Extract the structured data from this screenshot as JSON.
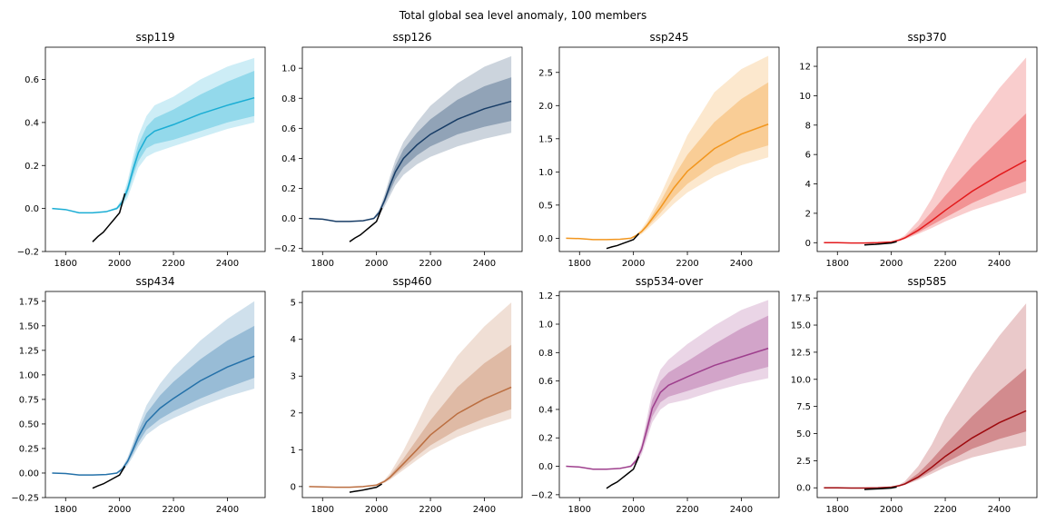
{
  "figure": {
    "title": "Total global sea level anomaly, 100 members"
  },
  "chart_data": [
    {
      "type": "line",
      "title": "ssp119",
      "color": "#1aadd4",
      "xlim": [
        1725,
        2540
      ],
      "ylim": [
        -0.2,
        0.75
      ],
      "xticks": [
        1800,
        2000,
        2200,
        2400
      ],
      "yticks": [
        -0.2,
        0.0,
        0.2,
        0.4,
        0.6
      ],
      "ytick_labels": [
        "−0.2",
        "0.0",
        "0.2",
        "0.4",
        "0.6"
      ],
      "x": [
        1750,
        1800,
        1850,
        1900,
        1950,
        1990,
        2010,
        2030,
        2050,
        2070,
        2100,
        2130,
        2200,
        2300,
        2400,
        2500
      ],
      "median": [
        0.0,
        -0.005,
        -0.02,
        -0.02,
        -0.015,
        0.0,
        0.03,
        0.09,
        0.18,
        0.26,
        0.33,
        0.36,
        0.39,
        0.44,
        0.48,
        0.515
      ],
      "inner_low": [
        0.0,
        -0.005,
        -0.02,
        -0.02,
        -0.015,
        -0.002,
        0.02,
        0.07,
        0.15,
        0.22,
        0.28,
        0.3,
        0.32,
        0.36,
        0.4,
        0.43
      ],
      "inner_high": [
        0.0,
        -0.005,
        -0.02,
        -0.02,
        -0.015,
        0.004,
        0.04,
        0.11,
        0.21,
        0.3,
        0.38,
        0.42,
        0.46,
        0.53,
        0.59,
        0.64
      ],
      "outer_low": [
        0.0,
        -0.005,
        -0.02,
        -0.02,
        -0.015,
        -0.005,
        0.01,
        0.05,
        0.12,
        0.19,
        0.24,
        0.26,
        0.29,
        0.33,
        0.37,
        0.4
      ],
      "outer_high": [
        0.0,
        -0.005,
        -0.02,
        -0.02,
        -0.015,
        0.008,
        0.05,
        0.13,
        0.24,
        0.34,
        0.43,
        0.48,
        0.52,
        0.6,
        0.66,
        0.7
      ],
      "obs_x": [
        1900,
        1920,
        1940,
        1960,
        1980,
        2000,
        2020
      ],
      "obs_y": [
        -0.155,
        -0.13,
        -0.11,
        -0.08,
        -0.05,
        -0.02,
        0.07
      ]
    },
    {
      "type": "line",
      "title": "ssp126",
      "color": "#173c66",
      "xlim": [
        1725,
        2540
      ],
      "ylim": [
        -0.22,
        1.14
      ],
      "xticks": [
        1800,
        2000,
        2200,
        2400
      ],
      "yticks": [
        -0.2,
        0.0,
        0.2,
        0.4,
        0.6,
        0.8,
        1.0
      ],
      "ytick_labels": [
        "−0.2",
        "0.0",
        "0.2",
        "0.4",
        "0.6",
        "0.8",
        "1.0"
      ],
      "x": [
        1750,
        1800,
        1850,
        1900,
        1950,
        1990,
        2010,
        2030,
        2050,
        2070,
        2100,
        2150,
        2200,
        2300,
        2400,
        2500
      ],
      "median": [
        0.0,
        -0.005,
        -0.02,
        -0.02,
        -0.015,
        0.0,
        0.04,
        0.12,
        0.22,
        0.31,
        0.4,
        0.49,
        0.56,
        0.66,
        0.73,
        0.78
      ],
      "inner_low": [
        0.0,
        -0.005,
        -0.02,
        -0.02,
        -0.015,
        -0.002,
        0.03,
        0.1,
        0.18,
        0.26,
        0.34,
        0.42,
        0.48,
        0.56,
        0.61,
        0.65
      ],
      "inner_high": [
        0.0,
        -0.005,
        -0.02,
        -0.02,
        -0.015,
        0.004,
        0.05,
        0.14,
        0.25,
        0.35,
        0.46,
        0.57,
        0.66,
        0.79,
        0.88,
        0.94
      ],
      "outer_low": [
        0.0,
        -0.005,
        -0.02,
        -0.02,
        -0.015,
        -0.005,
        0.02,
        0.08,
        0.15,
        0.22,
        0.29,
        0.36,
        0.41,
        0.48,
        0.53,
        0.57
      ],
      "outer_high": [
        0.0,
        -0.005,
        -0.02,
        -0.02,
        -0.015,
        0.008,
        0.06,
        0.16,
        0.28,
        0.39,
        0.51,
        0.64,
        0.75,
        0.9,
        1.01,
        1.08
      ],
      "obs_x": [
        1900,
        1920,
        1940,
        1960,
        1980,
        2000,
        2020
      ],
      "obs_y": [
        -0.155,
        -0.13,
        -0.11,
        -0.08,
        -0.05,
        -0.02,
        0.07
      ]
    },
    {
      "type": "line",
      "title": "ssp245",
      "color": "#f2961e",
      "xlim": [
        1725,
        2540
      ],
      "ylim": [
        -0.2,
        2.88
      ],
      "xticks": [
        1800,
        2000,
        2200,
        2400
      ],
      "yticks": [
        0.0,
        0.5,
        1.0,
        1.5,
        2.0,
        2.5
      ],
      "ytick_labels": [
        "0.0",
        "0.5",
        "1.0",
        "1.5",
        "2.0",
        "2.5"
      ],
      "x": [
        1750,
        1800,
        1850,
        1900,
        1950,
        1990,
        2010,
        2030,
        2050,
        2100,
        2150,
        2200,
        2300,
        2400,
        2500
      ],
      "median": [
        0.0,
        -0.005,
        -0.02,
        -0.02,
        -0.015,
        0.0,
        0.04,
        0.1,
        0.19,
        0.46,
        0.76,
        1.01,
        1.35,
        1.57,
        1.72
      ],
      "inner_low": [
        0.0,
        -0.005,
        -0.02,
        -0.02,
        -0.015,
        -0.002,
        0.03,
        0.08,
        0.16,
        0.38,
        0.62,
        0.82,
        1.1,
        1.28,
        1.4
      ],
      "inner_high": [
        0.0,
        -0.005,
        -0.02,
        -0.02,
        -0.015,
        0.004,
        0.05,
        0.12,
        0.22,
        0.55,
        0.93,
        1.26,
        1.75,
        2.1,
        2.35
      ],
      "outer_low": [
        0.0,
        -0.005,
        -0.02,
        -0.02,
        -0.015,
        -0.005,
        0.02,
        0.06,
        0.13,
        0.32,
        0.52,
        0.69,
        0.93,
        1.1,
        1.22
      ],
      "outer_high": [
        0.0,
        -0.005,
        -0.02,
        -0.02,
        -0.015,
        0.008,
        0.06,
        0.14,
        0.26,
        0.65,
        1.1,
        1.55,
        2.2,
        2.55,
        2.75
      ],
      "obs_x": [
        1900,
        1920,
        1940,
        1960,
        1980,
        2000,
        2020
      ],
      "obs_y": [
        -0.155,
        -0.13,
        -0.11,
        -0.08,
        -0.05,
        -0.02,
        0.07
      ]
    },
    {
      "type": "line",
      "title": "ssp370",
      "color": "#e31a1c",
      "xlim": [
        1725,
        2540
      ],
      "ylim": [
        -0.6,
        13.3
      ],
      "xticks": [
        1800,
        2000,
        2200,
        2400
      ],
      "yticks": [
        0,
        2,
        4,
        6,
        8,
        10,
        12
      ],
      "ytick_labels": [
        "0",
        "2",
        "4",
        "6",
        "8",
        "10",
        "12"
      ],
      "x": [
        1750,
        1800,
        1850,
        1900,
        1950,
        2000,
        2030,
        2050,
        2100,
        2150,
        2200,
        2300,
        2400,
        2500
      ],
      "median": [
        0.0,
        0.0,
        -0.02,
        -0.02,
        0.0,
        0.05,
        0.18,
        0.32,
        0.85,
        1.5,
        2.2,
        3.5,
        4.6,
        5.6
      ],
      "inner_low": [
        0.0,
        0.0,
        -0.02,
        -0.02,
        0.0,
        0.04,
        0.15,
        0.27,
        0.7,
        1.2,
        1.7,
        2.7,
        3.5,
        4.2
      ],
      "inner_high": [
        0.0,
        0.0,
        -0.02,
        -0.02,
        0.0,
        0.06,
        0.22,
        0.4,
        1.1,
        2.1,
        3.2,
        5.2,
        7.0,
        8.8
      ],
      "outer_low": [
        0.0,
        0.0,
        -0.02,
        -0.02,
        0.0,
        0.03,
        0.12,
        0.23,
        0.6,
        1.0,
        1.45,
        2.2,
        2.8,
        3.4
      ],
      "outer_high": [
        0.0,
        0.0,
        -0.02,
        -0.02,
        0.0,
        0.07,
        0.28,
        0.5,
        1.5,
        3.0,
        4.8,
        8.0,
        10.5,
        12.6
      ],
      "obs_x": [
        1900,
        1920,
        1940,
        1960,
        1980,
        2000,
        2020
      ],
      "obs_y": [
        -0.155,
        -0.13,
        -0.11,
        -0.08,
        -0.05,
        -0.02,
        0.07
      ]
    },
    {
      "type": "line",
      "title": "ssp434",
      "color": "#2471a9",
      "xlim": [
        1725,
        2540
      ],
      "ylim": [
        -0.25,
        1.85
      ],
      "xticks": [
        1800,
        2000,
        2200,
        2400
      ],
      "yticks": [
        -0.25,
        0.0,
        0.25,
        0.5,
        0.75,
        1.0,
        1.25,
        1.5,
        1.75
      ],
      "ytick_labels": [
        "−0.25",
        "0.00",
        "0.25",
        "0.50",
        "0.75",
        "1.00",
        "1.25",
        "1.50",
        "1.75"
      ],
      "x": [
        1750,
        1800,
        1850,
        1900,
        1950,
        1990,
        2010,
        2030,
        2050,
        2070,
        2100,
        2150,
        2200,
        2300,
        2400,
        2500
      ],
      "median": [
        0.0,
        -0.005,
        -0.02,
        -0.02,
        -0.015,
        0.0,
        0.04,
        0.12,
        0.24,
        0.37,
        0.52,
        0.66,
        0.76,
        0.94,
        1.08,
        1.19
      ],
      "inner_low": [
        0.0,
        -0.005,
        -0.02,
        -0.02,
        -0.015,
        -0.002,
        0.03,
        0.1,
        0.2,
        0.31,
        0.44,
        0.55,
        0.63,
        0.76,
        0.87,
        0.97
      ],
      "inner_high": [
        0.0,
        -0.005,
        -0.02,
        -0.02,
        -0.015,
        0.004,
        0.05,
        0.14,
        0.28,
        0.43,
        0.61,
        0.79,
        0.93,
        1.16,
        1.35,
        1.5
      ],
      "outer_low": [
        0.0,
        -0.005,
        -0.02,
        -0.02,
        -0.015,
        -0.005,
        0.02,
        0.08,
        0.17,
        0.27,
        0.39,
        0.49,
        0.56,
        0.68,
        0.78,
        0.86
      ],
      "outer_high": [
        0.0,
        -0.005,
        -0.02,
        -0.02,
        -0.015,
        0.008,
        0.06,
        0.16,
        0.31,
        0.48,
        0.69,
        0.91,
        1.08,
        1.35,
        1.57,
        1.75
      ],
      "obs_x": [
        1900,
        1920,
        1940,
        1960,
        1980,
        2000,
        2020
      ],
      "obs_y": [
        -0.155,
        -0.13,
        -0.11,
        -0.08,
        -0.05,
        -0.02,
        0.07
      ]
    },
    {
      "type": "line",
      "title": "ssp460",
      "color": "#bb6e40",
      "xlim": [
        1725,
        2540
      ],
      "ylim": [
        -0.3,
        5.3
      ],
      "xticks": [
        1800,
        2000,
        2200,
        2400
      ],
      "yticks": [
        0,
        1,
        2,
        3,
        4,
        5
      ],
      "ytick_labels": [
        "0",
        "1",
        "2",
        "3",
        "4",
        "5"
      ],
      "x": [
        1750,
        1800,
        1850,
        1900,
        1950,
        2000,
        2030,
        2050,
        2100,
        2150,
        2200,
        2300,
        2400,
        2500
      ],
      "median": [
        0.0,
        -0.01,
        -0.02,
        -0.02,
        0.0,
        0.04,
        0.14,
        0.25,
        0.62,
        1.0,
        1.4,
        1.98,
        2.38,
        2.7
      ],
      "inner_low": [
        0.0,
        -0.01,
        -0.02,
        -0.02,
        0.0,
        0.03,
        0.12,
        0.21,
        0.52,
        0.83,
        1.12,
        1.55,
        1.85,
        2.1
      ],
      "inner_high": [
        0.0,
        -0.01,
        -0.02,
        -0.02,
        0.0,
        0.05,
        0.16,
        0.3,
        0.76,
        1.28,
        1.8,
        2.7,
        3.35,
        3.85
      ],
      "outer_low": [
        0.0,
        -0.01,
        -0.02,
        -0.02,
        0.0,
        0.02,
        0.1,
        0.18,
        0.45,
        0.72,
        0.98,
        1.35,
        1.62,
        1.85
      ],
      "outer_high": [
        0.0,
        -0.01,
        -0.02,
        -0.02,
        0.0,
        0.06,
        0.19,
        0.36,
        0.98,
        1.7,
        2.45,
        3.55,
        4.35,
        5.0
      ],
      "obs_x": [
        1900,
        1920,
        1940,
        1960,
        1980,
        2000,
        2020
      ],
      "obs_y": [
        -0.155,
        -0.13,
        -0.11,
        -0.08,
        -0.05,
        -0.02,
        0.07
      ]
    },
    {
      "type": "line",
      "title": "ssp534-over",
      "color": "#9e3f8d",
      "xlim": [
        1725,
        2540
      ],
      "ylim": [
        -0.22,
        1.23
      ],
      "xticks": [
        1800,
        2000,
        2200,
        2400
      ],
      "yticks": [
        -0.2,
        0.0,
        0.2,
        0.4,
        0.6,
        0.8,
        1.0,
        1.2
      ],
      "ytick_labels": [
        "−0.2",
        "0.0",
        "0.2",
        "0.4",
        "0.6",
        "0.8",
        "1.0",
        "1.2"
      ],
      "x": [
        1750,
        1800,
        1850,
        1900,
        1950,
        1990,
        2010,
        2030,
        2050,
        2070,
        2100,
        2130,
        2200,
        2300,
        2400,
        2500
      ],
      "median": [
        0.0,
        -0.005,
        -0.02,
        -0.02,
        -0.015,
        0.0,
        0.04,
        0.12,
        0.26,
        0.41,
        0.52,
        0.57,
        0.63,
        0.71,
        0.77,
        0.83
      ],
      "inner_low": [
        0.0,
        -0.005,
        -0.02,
        -0.02,
        -0.015,
        -0.002,
        0.03,
        0.1,
        0.22,
        0.35,
        0.45,
        0.49,
        0.53,
        0.59,
        0.65,
        0.7
      ],
      "inner_high": [
        0.0,
        -0.005,
        -0.02,
        -0.02,
        -0.015,
        0.004,
        0.05,
        0.14,
        0.3,
        0.47,
        0.6,
        0.66,
        0.74,
        0.86,
        0.97,
        1.06
      ],
      "outer_low": [
        0.0,
        -0.005,
        -0.02,
        -0.02,
        -0.015,
        -0.005,
        0.02,
        0.08,
        0.19,
        0.31,
        0.4,
        0.44,
        0.47,
        0.53,
        0.58,
        0.62
      ],
      "outer_high": [
        0.0,
        -0.005,
        -0.02,
        -0.02,
        -0.015,
        0.008,
        0.06,
        0.16,
        0.34,
        0.53,
        0.68,
        0.75,
        0.86,
        0.99,
        1.1,
        1.17
      ],
      "obs_x": [
        1900,
        1920,
        1940,
        1960,
        1980,
        2000,
        2020
      ],
      "obs_y": [
        -0.155,
        -0.13,
        -0.11,
        -0.08,
        -0.05,
        -0.02,
        0.07
      ]
    },
    {
      "type": "line",
      "title": "ssp585",
      "color": "#9e0a0e",
      "xlim": [
        1725,
        2540
      ],
      "ylim": [
        -0.9,
        18.1
      ],
      "xticks": [
        1800,
        2000,
        2200,
        2400
      ],
      "yticks": [
        0.0,
        2.5,
        5.0,
        7.5,
        10.0,
        12.5,
        15.0,
        17.5
      ],
      "ytick_labels": [
        "0.0",
        "2.5",
        "5.0",
        "7.5",
        "10.0",
        "12.5",
        "15.0",
        "17.5"
      ],
      "x": [
        1750,
        1800,
        1850,
        1900,
        1950,
        2000,
        2030,
        2050,
        2100,
        2150,
        2200,
        2300,
        2400,
        2500
      ],
      "median": [
        0.0,
        0.0,
        -0.02,
        -0.02,
        0.0,
        0.06,
        0.2,
        0.35,
        1.0,
        1.9,
        2.9,
        4.6,
        6.0,
        7.1
      ],
      "inner_low": [
        0.0,
        0.0,
        -0.02,
        -0.02,
        0.0,
        0.05,
        0.17,
        0.3,
        0.85,
        1.55,
        2.3,
        3.6,
        4.5,
        5.2
      ],
      "inner_high": [
        0.0,
        0.0,
        -0.02,
        -0.02,
        0.0,
        0.07,
        0.24,
        0.45,
        1.35,
        2.6,
        4.0,
        6.6,
        8.9,
        11.0
      ],
      "outer_low": [
        0.0,
        0.0,
        -0.02,
        -0.02,
        0.0,
        0.04,
        0.14,
        0.26,
        0.72,
        1.3,
        1.9,
        2.8,
        3.4,
        3.9
      ],
      "outer_high": [
        0.0,
        0.0,
        -0.02,
        -0.02,
        0.0,
        0.08,
        0.3,
        0.6,
        2.0,
        4.0,
        6.5,
        10.5,
        14.0,
        17.0
      ],
      "obs_x": [
        1900,
        1920,
        1940,
        1960,
        1980,
        2000,
        2020
      ],
      "obs_y": [
        -0.155,
        -0.13,
        -0.11,
        -0.08,
        -0.05,
        -0.02,
        0.07
      ]
    }
  ]
}
